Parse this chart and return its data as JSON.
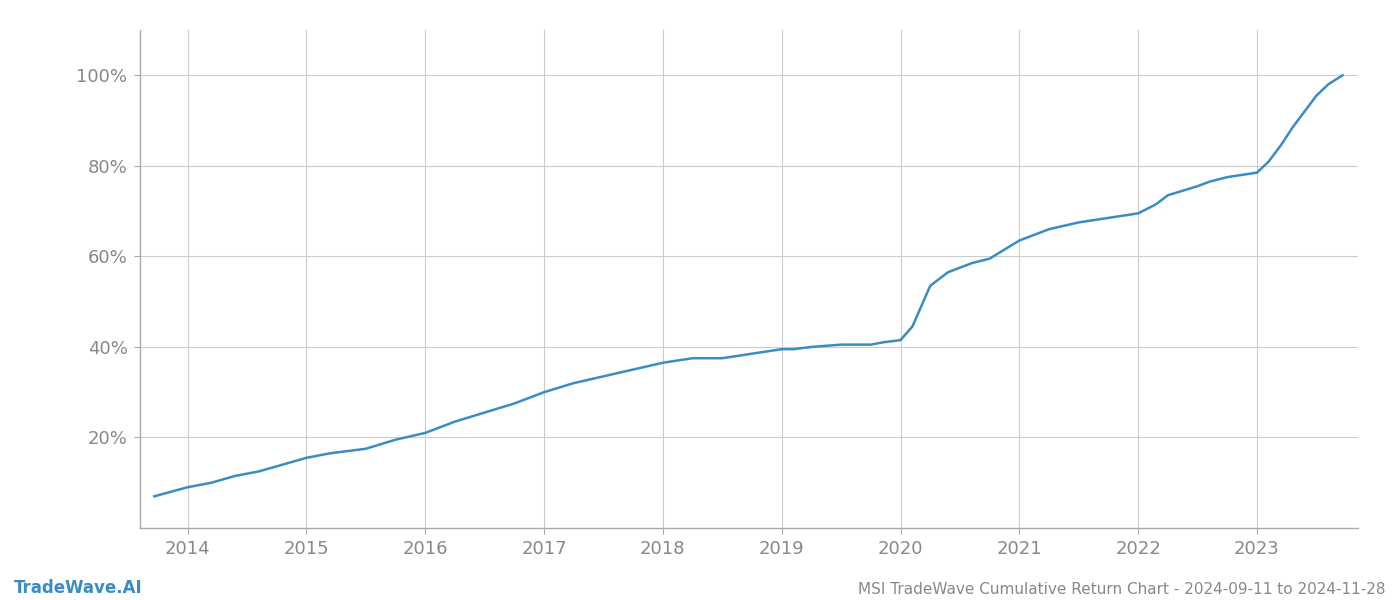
{
  "title": "MSI TradeWave Cumulative Return Chart - 2024-09-11 to 2024-11-28",
  "watermark": "TradeWave.AI",
  "line_color": "#3a8cc4",
  "background_color": "#ffffff",
  "grid_color": "#cccccc",
  "x_values": [
    2013.72,
    2014.0,
    2014.2,
    2014.4,
    2014.6,
    2014.8,
    2015.0,
    2015.2,
    2015.5,
    2015.75,
    2016.0,
    2016.25,
    2016.5,
    2016.75,
    2017.0,
    2017.25,
    2017.5,
    2017.75,
    2018.0,
    2018.25,
    2018.5,
    2018.75,
    2019.0,
    2019.1,
    2019.25,
    2019.5,
    2019.75,
    2019.85,
    2020.0,
    2020.1,
    2020.25,
    2020.4,
    2020.6,
    2020.75,
    2021.0,
    2021.25,
    2021.5,
    2021.75,
    2022.0,
    2022.15,
    2022.25,
    2022.5,
    2022.6,
    2022.75,
    2023.0,
    2023.1,
    2023.2,
    2023.3,
    2023.4,
    2023.5,
    2023.6,
    2023.72
  ],
  "y_values": [
    0.07,
    0.09,
    0.1,
    0.115,
    0.125,
    0.14,
    0.155,
    0.165,
    0.175,
    0.195,
    0.21,
    0.235,
    0.255,
    0.275,
    0.3,
    0.32,
    0.335,
    0.35,
    0.365,
    0.375,
    0.375,
    0.385,
    0.395,
    0.395,
    0.4,
    0.405,
    0.405,
    0.41,
    0.415,
    0.445,
    0.535,
    0.565,
    0.585,
    0.595,
    0.635,
    0.66,
    0.675,
    0.685,
    0.695,
    0.715,
    0.735,
    0.755,
    0.765,
    0.775,
    0.785,
    0.81,
    0.845,
    0.885,
    0.92,
    0.955,
    0.98,
    1.0
  ],
  "xticks": [
    2014,
    2015,
    2016,
    2017,
    2018,
    2019,
    2020,
    2021,
    2022,
    2023
  ],
  "yticks": [
    0.2,
    0.4,
    0.6,
    0.8,
    1.0
  ],
  "xlim": [
    2013.6,
    2023.85
  ],
  "ylim": [
    0.0,
    1.1
  ],
  "tick_color": "#888888",
  "label_fontsize": 13,
  "title_fontsize": 11,
  "watermark_fontsize": 12,
  "line_width": 1.8
}
